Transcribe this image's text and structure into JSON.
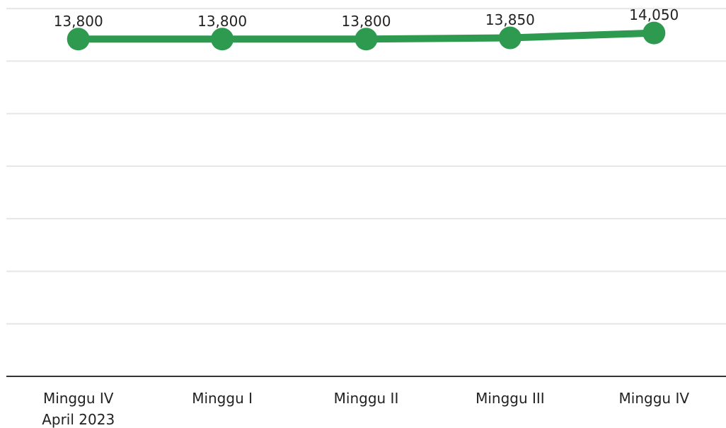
{
  "chart_data": {
    "type": "line",
    "categories": [
      "Minggu IV\nApril 2023",
      "Minggu I",
      "Minggu II",
      "Minggu III",
      "Minggu IV"
    ],
    "series": [
      {
        "color": "#2e9a4f",
        "values": [
          13800,
          13800,
          13800,
          13850,
          14050
        ],
        "value_labels": [
          "13,800",
          "13,800",
          "13,800",
          "13,850",
          "14,050"
        ]
      }
    ],
    "ylim": [
      0,
      15400
    ],
    "yticks": [
      0,
      2150,
      4300,
      6450,
      8600,
      10750,
      12900,
      15050
    ],
    "grid": true
  }
}
